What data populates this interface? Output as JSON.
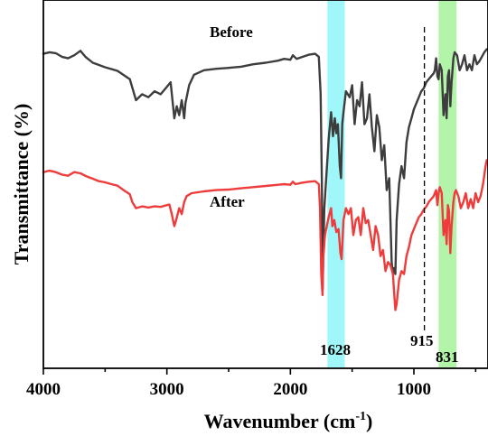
{
  "chart_data": {
    "type": "line",
    "title": "",
    "xlabel": "Wavenumber (cm",
    "xlabel_sup": "-1",
    "xlabel_close": ")",
    "ylabel": "Transmittance (%)",
    "xlim": [
      4000,
      400
    ],
    "x_reversed": true,
    "y_ticks_shown": false,
    "grid": false,
    "legend": "none",
    "x_ticks": [
      "4000",
      "3000",
      "2000",
      "1000"
    ],
    "x_tick_values": [
      4000,
      3000,
      2000,
      1000
    ],
    "highlight_bands": [
      {
        "x_from": 1700,
        "x_to": 1560,
        "color": "#9ff7f9"
      },
      {
        "x_from": 800,
        "x_to": 655,
        "color": "#b3f5a8"
      }
    ],
    "reference_line": {
      "x": 915,
      "style": "dashed",
      "color": "#000000"
    },
    "annotations": [
      {
        "text": "1628"
      },
      {
        "text": "915"
      },
      {
        "text": "831"
      }
    ],
    "series": [
      {
        "name": "Before",
        "color": "#3d3d3d",
        "points": [
          [
            4000,
            0.935
          ],
          [
            3950,
            0.94
          ],
          [
            3900,
            0.937
          ],
          [
            3850,
            0.925
          ],
          [
            3800,
            0.92
          ],
          [
            3750,
            0.93
          ],
          [
            3700,
            0.945
          ],
          [
            3660,
            0.925
          ],
          [
            3600,
            0.905
          ],
          [
            3500,
            0.89
          ],
          [
            3400,
            0.878
          ],
          [
            3300,
            0.85
          ],
          [
            3250,
            0.78
          ],
          [
            3200,
            0.8
          ],
          [
            3150,
            0.79
          ],
          [
            3100,
            0.81
          ],
          [
            3050,
            0.8
          ],
          [
            3000,
            0.825
          ],
          [
            2970,
            0.84
          ],
          [
            2940,
            0.72
          ],
          [
            2920,
            0.76
          ],
          [
            2900,
            0.73
          ],
          [
            2880,
            0.78
          ],
          [
            2860,
            0.72
          ],
          [
            2850,
            0.77
          ],
          [
            2820,
            0.83
          ],
          [
            2780,
            0.865
          ],
          [
            2700,
            0.88
          ],
          [
            2600,
            0.885
          ],
          [
            2500,
            0.888
          ],
          [
            2400,
            0.892
          ],
          [
            2300,
            0.9
          ],
          [
            2200,
            0.905
          ],
          [
            2100,
            0.912
          ],
          [
            2050,
            0.918
          ],
          [
            2000,
            0.915
          ],
          [
            1980,
            0.93
          ],
          [
            1950,
            0.918
          ],
          [
            1900,
            0.925
          ],
          [
            1850,
            0.932
          ],
          [
            1800,
            0.935
          ],
          [
            1770,
            0.925
          ],
          [
            1755,
            0.8
          ],
          [
            1745,
            0.5
          ],
          [
            1738,
            0.15
          ],
          [
            1733,
            0.29
          ],
          [
            1725,
            0.42
          ],
          [
            1705,
            0.55
          ],
          [
            1690,
            0.65
          ],
          [
            1670,
            0.74
          ],
          [
            1655,
            0.66
          ],
          [
            1640,
            0.72
          ],
          [
            1628,
            0.67
          ],
          [
            1615,
            0.7
          ],
          [
            1600,
            0.56
          ],
          [
            1590,
            0.52
          ],
          [
            1580,
            0.7
          ],
          [
            1570,
            0.74
          ],
          [
            1550,
            0.81
          ],
          [
            1520,
            0.79
          ],
          [
            1500,
            0.83
          ],
          [
            1480,
            0.7
          ],
          [
            1460,
            0.78
          ],
          [
            1440,
            0.76
          ],
          [
            1420,
            0.84
          ],
          [
            1400,
            0.7
          ],
          [
            1380,
            0.72
          ],
          [
            1360,
            0.8
          ],
          [
            1340,
            0.69
          ],
          [
            1320,
            0.61
          ],
          [
            1300,
            0.73
          ],
          [
            1280,
            0.69
          ],
          [
            1260,
            0.58
          ],
          [
            1240,
            0.63
          ],
          [
            1220,
            0.48
          ],
          [
            1200,
            0.52
          ],
          [
            1180,
            0.24
          ],
          [
            1170,
            0.2
          ],
          [
            1160,
            0.22
          ],
          [
            1150,
            0.2
          ],
          [
            1140,
            0.38
          ],
          [
            1120,
            0.5
          ],
          [
            1100,
            0.56
          ],
          [
            1080,
            0.52
          ],
          [
            1060,
            0.64
          ],
          [
            1040,
            0.69
          ],
          [
            1020,
            0.72
          ],
          [
            1000,
            0.75
          ],
          [
            980,
            0.77
          ],
          [
            960,
            0.79
          ],
          [
            940,
            0.81
          ],
          [
            920,
            0.82
          ],
          [
            900,
            0.84
          ],
          [
            880,
            0.85
          ],
          [
            860,
            0.86
          ],
          [
            840,
            0.87
          ],
          [
            830,
            0.88
          ],
          [
            820,
            0.92
          ],
          [
            810,
            0.86
          ],
          [
            800,
            0.85
          ],
          [
            790,
            0.9
          ],
          [
            775,
            0.88
          ],
          [
            760,
            0.73
          ],
          [
            745,
            0.8
          ],
          [
            735,
            0.72
          ],
          [
            725,
            0.86
          ],
          [
            715,
            0.88
          ],
          [
            705,
            0.76
          ],
          [
            695,
            0.84
          ],
          [
            680,
            0.92
          ],
          [
            670,
            0.94
          ],
          [
            650,
            0.93
          ],
          [
            630,
            0.88
          ],
          [
            610,
            0.9
          ],
          [
            590,
            0.93
          ],
          [
            570,
            0.88
          ],
          [
            550,
            0.9
          ],
          [
            530,
            0.88
          ],
          [
            510,
            0.93
          ],
          [
            490,
            0.9
          ],
          [
            470,
            0.91
          ],
          [
            450,
            0.925
          ],
          [
            430,
            0.94
          ],
          [
            410,
            0.95
          ],
          [
            400,
            0.95
          ]
        ]
      },
      {
        "name": "After",
        "color": "#ee3b3b",
        "points": [
          [
            4000,
            0.54
          ],
          [
            3950,
            0.545
          ],
          [
            3900,
            0.54
          ],
          [
            3850,
            0.532
          ],
          [
            3800,
            0.528
          ],
          [
            3750,
            0.54
          ],
          [
            3700,
            0.536
          ],
          [
            3650,
            0.526
          ],
          [
            3600,
            0.518
          ],
          [
            3550,
            0.51
          ],
          [
            3500,
            0.506
          ],
          [
            3450,
            0.5
          ],
          [
            3400,
            0.495
          ],
          [
            3350,
            0.48
          ],
          [
            3300,
            0.466
          ],
          [
            3280,
            0.44
          ],
          [
            3250,
            0.42
          ],
          [
            3200,
            0.426
          ],
          [
            3150,
            0.422
          ],
          [
            3100,
            0.426
          ],
          [
            3050,
            0.424
          ],
          [
            3000,
            0.43
          ],
          [
            2980,
            0.432
          ],
          [
            2960,
            0.4
          ],
          [
            2940,
            0.36
          ],
          [
            2925,
            0.38
          ],
          [
            2900,
            0.42
          ],
          [
            2880,
            0.4
          ],
          [
            2860,
            0.44
          ],
          [
            2840,
            0.46
          ],
          [
            2800,
            0.47
          ],
          [
            2700,
            0.476
          ],
          [
            2600,
            0.48
          ],
          [
            2500,
            0.482
          ],
          [
            2400,
            0.486
          ],
          [
            2300,
            0.49
          ],
          [
            2200,
            0.494
          ],
          [
            2100,
            0.498
          ],
          [
            2050,
            0.5
          ],
          [
            2000,
            0.498
          ],
          [
            1980,
            0.508
          ],
          [
            1960,
            0.5
          ],
          [
            1900,
            0.505
          ],
          [
            1850,
            0.508
          ],
          [
            1800,
            0.51
          ],
          [
            1770,
            0.5
          ],
          [
            1760,
            0.42
          ],
          [
            1750,
            0.2
          ],
          [
            1740,
            0.13
          ],
          [
            1735,
            0.25
          ],
          [
            1720,
            0.33
          ],
          [
            1705,
            0.36
          ],
          [
            1690,
            0.39
          ],
          [
            1670,
            0.42
          ],
          [
            1660,
            0.36
          ],
          [
            1645,
            0.38
          ],
          [
            1628,
            0.34
          ],
          [
            1610,
            0.35
          ],
          [
            1595,
            0.27
          ],
          [
            1585,
            0.25
          ],
          [
            1570,
            0.38
          ],
          [
            1550,
            0.42
          ],
          [
            1530,
            0.4
          ],
          [
            1510,
            0.42
          ],
          [
            1490,
            0.33
          ],
          [
            1470,
            0.38
          ],
          [
            1450,
            0.39
          ],
          [
            1430,
            0.33
          ],
          [
            1410,
            0.42
          ],
          [
            1390,
            0.37
          ],
          [
            1370,
            0.38
          ],
          [
            1350,
            0.33
          ],
          [
            1330,
            0.28
          ],
          [
            1310,
            0.36
          ],
          [
            1290,
            0.33
          ],
          [
            1270,
            0.26
          ],
          [
            1250,
            0.28
          ],
          [
            1230,
            0.21
          ],
          [
            1210,
            0.24
          ],
          [
            1190,
            0.23
          ],
          [
            1170,
            0.2
          ],
          [
            1160,
            0.14
          ],
          [
            1150,
            0.08
          ],
          [
            1140,
            0.1
          ],
          [
            1120,
            0.18
          ],
          [
            1100,
            0.21
          ],
          [
            1080,
            0.2
          ],
          [
            1060,
            0.26
          ],
          [
            1040,
            0.29
          ],
          [
            1020,
            0.33
          ],
          [
            1000,
            0.35
          ],
          [
            980,
            0.37
          ],
          [
            960,
            0.39
          ],
          [
            940,
            0.4
          ],
          [
            920,
            0.415
          ],
          [
            900,
            0.425
          ],
          [
            880,
            0.44
          ],
          [
            860,
            0.45
          ],
          [
            840,
            0.46
          ],
          [
            830,
            0.47
          ],
          [
            820,
            0.48
          ],
          [
            810,
            0.43
          ],
          [
            800,
            0.47
          ],
          [
            790,
            0.49
          ],
          [
            775,
            0.47
          ],
          [
            760,
            0.33
          ],
          [
            745,
            0.38
          ],
          [
            735,
            0.3
          ],
          [
            725,
            0.43
          ],
          [
            715,
            0.41
          ],
          [
            705,
            0.27
          ],
          [
            695,
            0.36
          ],
          [
            680,
            0.44
          ],
          [
            670,
            0.47
          ],
          [
            660,
            0.48
          ],
          [
            640,
            0.46
          ],
          [
            620,
            0.42
          ],
          [
            600,
            0.44
          ],
          [
            580,
            0.47
          ],
          [
            560,
            0.42
          ],
          [
            540,
            0.45
          ],
          [
            520,
            0.42
          ],
          [
            500,
            0.47
          ],
          [
            480,
            0.44
          ],
          [
            460,
            0.46
          ],
          [
            440,
            0.5
          ],
          [
            420,
            0.56
          ],
          [
            410,
            0.58
          ],
          [
            400,
            0.58
          ]
        ]
      }
    ]
  }
}
